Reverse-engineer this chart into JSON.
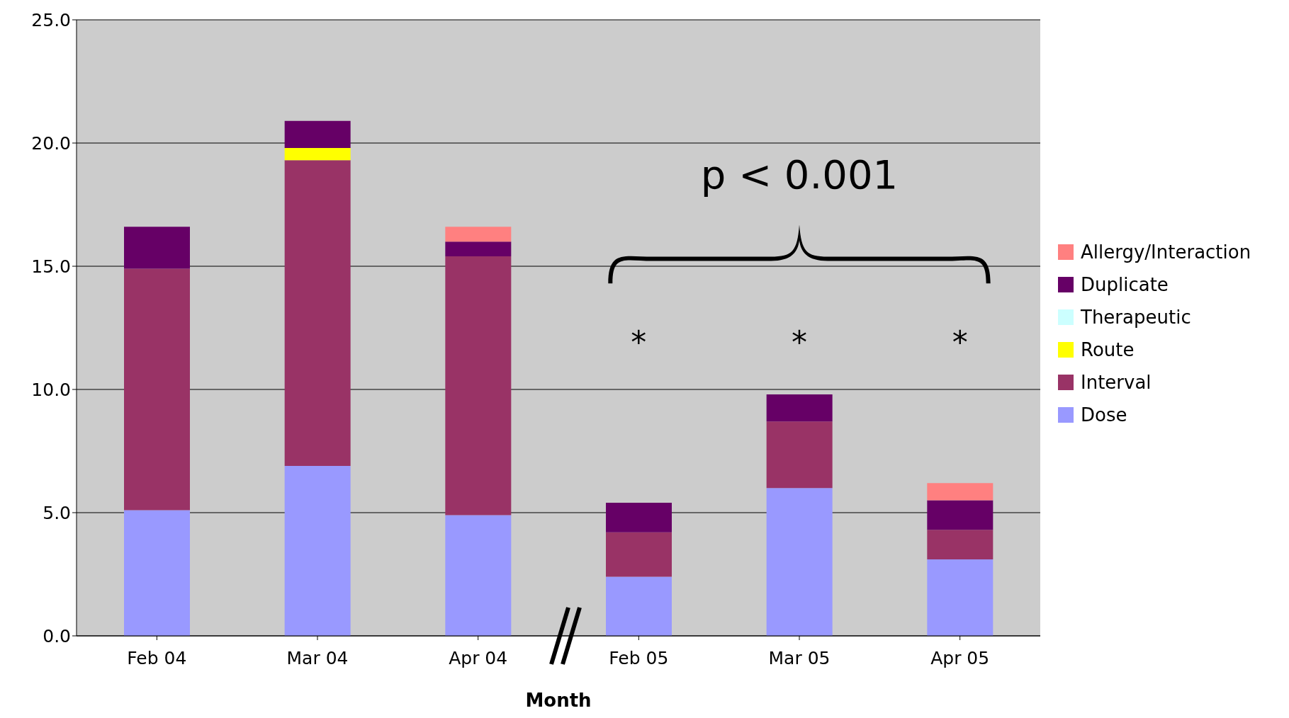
{
  "chart_data": {
    "type": "bar",
    "stacked": true,
    "xlabel": "Month",
    "categories": [
      "Feb 04",
      "Mar 04",
      "Apr 04",
      "Feb 05",
      "Mar 05",
      "Apr 05"
    ],
    "series": [
      {
        "name": "Dose",
        "color": "#9999ff",
        "values": [
          5.1,
          6.9,
          4.9,
          2.4,
          6.0,
          3.1
        ]
      },
      {
        "name": "Interval",
        "color": "#993366",
        "values": [
          9.8,
          12.4,
          10.5,
          1.8,
          2.7,
          1.2
        ]
      },
      {
        "name": "Route",
        "color": "#ffff00",
        "values": [
          0,
          0.5,
          0,
          0,
          0,
          0
        ]
      },
      {
        "name": "Therapeutic",
        "color": "#ccffff",
        "values": [
          0,
          0,
          0,
          0,
          0,
          0
        ]
      },
      {
        "name": "Duplicate",
        "color": "#660066",
        "values": [
          1.7,
          1.1,
          0.6,
          1.2,
          1.1,
          1.2
        ]
      },
      {
        "name": "Allergy/Interaction",
        "color": "#ff8080",
        "values": [
          0,
          0,
          0.6,
          0,
          0,
          0.7
        ]
      }
    ],
    "ylim": [
      0,
      25
    ],
    "yticks": [
      {
        "value": 0,
        "label": "0.0"
      },
      {
        "value": 5,
        "label": "5.0"
      },
      {
        "value": 10,
        "label": "10.0"
      },
      {
        "value": 15,
        "label": "15.0"
      },
      {
        "value": 20,
        "label": "20.0"
      },
      {
        "value": 25,
        "label": "25.0"
      }
    ],
    "grid": "y",
    "legend": "right",
    "annotations": [
      "p < 0.001",
      "*",
      "*",
      "*"
    ]
  }
}
